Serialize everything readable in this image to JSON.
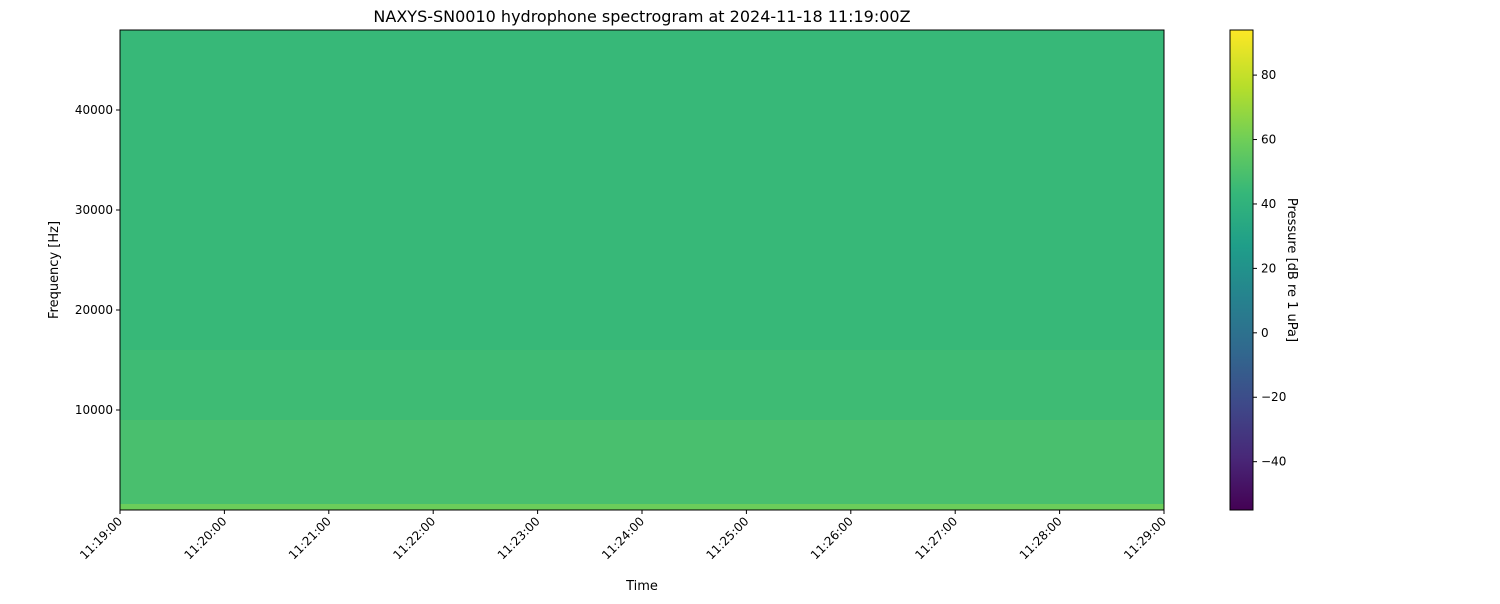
{
  "chart_data": {
    "type": "heatmap",
    "title": "NAXYS-SN0010 hydrophone spectrogram at 2024-11-18 11:19:00Z",
    "xlabel": "Time",
    "ylabel": "Frequency [Hz]",
    "x_ticks": [
      "11:19:00",
      "11:20:00",
      "11:21:00",
      "11:22:00",
      "11:23:00",
      "11:24:00",
      "11:25:00",
      "11:26:00",
      "11:27:00",
      "11:28:00",
      "11:29:00"
    ],
    "y_ticks": [
      10000,
      20000,
      30000,
      40000
    ],
    "ylim": [
      0,
      48000
    ],
    "colormap": "viridis",
    "colorbar": {
      "label": "Pressure [dB re 1 uPa]",
      "range": [
        -55,
        94
      ],
      "ticks": [
        -40,
        -20,
        0,
        20,
        40,
        60,
        80
      ]
    },
    "approximate_levels_db": [
      {
        "freq_from": 0,
        "freq_to": 600,
        "db": 60
      },
      {
        "freq_from": 600,
        "freq_to": 9000,
        "db": 50
      },
      {
        "freq_from": 9000,
        "freq_to": 16000,
        "db": 47
      },
      {
        "freq_from": 16000,
        "freq_to": 48000,
        "db": 45
      }
    ]
  }
}
